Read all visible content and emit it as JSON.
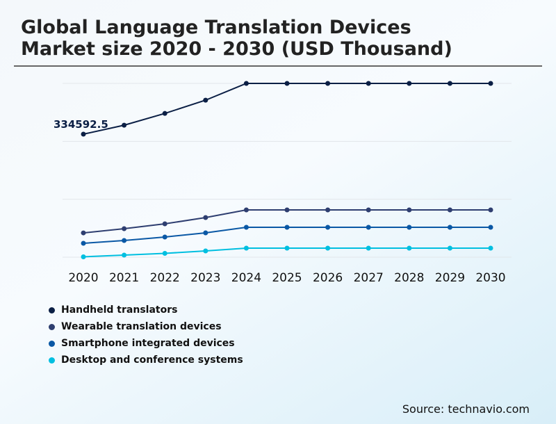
{
  "title_line1": "Global Language Translation Devices",
  "title_line2": "Market size 2020 - 2030 (USD Thousand)",
  "source": "Source: technavio.com",
  "chart_data": {
    "type": "line",
    "title": "Global Language Translation Devices Market size 2020 - 2030 (USD Thousand)",
    "categories": [
      "2020",
      "2021",
      "2022",
      "2023",
      "2024",
      "2025",
      "2026",
      "2027",
      "2028",
      "2029",
      "2030"
    ],
    "ylim": [
      0,
      472600
    ],
    "grid": true,
    "legend": "bottom-left",
    "annotation": "334592.5",
    "series": [
      {
        "name": "Handheld translators",
        "color": "#0b1f45",
        "values": [
          334592.5,
          359000,
          391000,
          427000,
          472600,
          472600,
          472600,
          472600,
          472600,
          472600,
          472600
        ]
      },
      {
        "name": "Wearable translation devices",
        "color": "#2e3e70",
        "values": [
          66000,
          77500,
          90700,
          107800,
          128500,
          128500,
          128500,
          128500,
          128500,
          128500,
          128500
        ]
      },
      {
        "name": "Smartphone integrated devices",
        "color": "#0a58a5",
        "values": [
          37800,
          45400,
          54800,
          66200,
          81300,
          81300,
          81300,
          81300,
          81300,
          81300,
          81300
        ]
      },
      {
        "name": "Desktop and conference systems",
        "color": "#00bfe0",
        "values": [
          1000,
          5700,
          10400,
          17000,
          24600,
          24600,
          24600,
          24600,
          24600,
          24600,
          24600
        ]
      }
    ]
  }
}
